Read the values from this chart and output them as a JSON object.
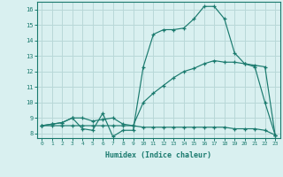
{
  "line1_x": [
    0,
    1,
    2,
    3,
    4,
    5,
    6,
    7,
    8,
    9,
    10,
    11,
    12,
    13,
    14,
    15,
    16,
    17,
    18,
    19,
    20,
    21,
    22,
    23
  ],
  "line1_y": [
    8.5,
    8.6,
    8.7,
    9.0,
    8.3,
    8.2,
    9.3,
    7.8,
    8.2,
    8.2,
    12.3,
    14.4,
    14.7,
    14.7,
    14.8,
    15.4,
    16.2,
    16.2,
    15.4,
    13.2,
    12.5,
    12.3,
    10.0,
    7.9
  ],
  "line2_x": [
    0,
    1,
    2,
    3,
    4,
    5,
    6,
    7,
    8,
    9,
    10,
    11,
    12,
    13,
    14,
    15,
    16,
    17,
    18,
    19,
    20,
    21,
    22,
    23
  ],
  "line2_y": [
    8.5,
    8.6,
    8.7,
    9.0,
    9.0,
    8.8,
    8.9,
    9.0,
    8.6,
    8.5,
    10.0,
    10.6,
    11.1,
    11.6,
    12.0,
    12.2,
    12.5,
    12.7,
    12.6,
    12.6,
    12.5,
    12.4,
    12.3,
    7.9
  ],
  "line3_x": [
    0,
    1,
    2,
    3,
    4,
    5,
    6,
    7,
    8,
    9,
    10,
    11,
    12,
    13,
    14,
    15,
    16,
    17,
    18,
    19,
    20,
    21,
    22,
    23
  ],
  "line3_y": [
    8.5,
    8.5,
    8.5,
    8.5,
    8.5,
    8.5,
    8.5,
    8.5,
    8.5,
    8.5,
    8.4,
    8.4,
    8.4,
    8.4,
    8.4,
    8.4,
    8.4,
    8.4,
    8.4,
    8.3,
    8.3,
    8.3,
    8.2,
    7.9
  ],
  "line_color": "#1a7a6e",
  "bg_color": "#d9f0f0",
  "grid_color": "#b8d8d8",
  "xlabel": "Humidex (Indice chaleur)",
  "xlim": [
    -0.5,
    23.5
  ],
  "ylim": [
    7.7,
    16.5
  ],
  "yticks": [
    8,
    9,
    10,
    11,
    12,
    13,
    14,
    15,
    16
  ],
  "xticks": [
    0,
    1,
    2,
    3,
    4,
    5,
    6,
    7,
    8,
    9,
    10,
    11,
    12,
    13,
    14,
    15,
    16,
    17,
    18,
    19,
    20,
    21,
    22,
    23
  ]
}
